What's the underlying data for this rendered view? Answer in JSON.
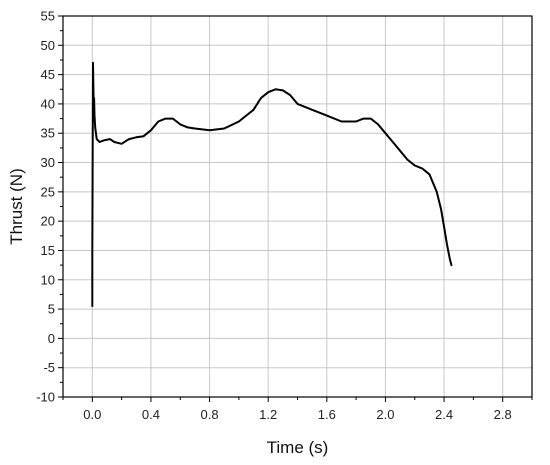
{
  "chart_data": {
    "type": "line",
    "title": "",
    "xlabel": "Time (s)",
    "ylabel": "Thrust (N)",
    "xlim": [
      -0.2,
      3.0
    ],
    "ylim": [
      -10,
      55
    ],
    "xticks": [
      0.0,
      0.4,
      0.8,
      1.2,
      1.6,
      2.0,
      2.4,
      2.8
    ],
    "xtick_labels": [
      "0.0",
      "0.4",
      "0.8",
      "1.2",
      "1.6",
      "2.0",
      "2.4",
      "2.8"
    ],
    "yticks": [
      -10,
      -5,
      0,
      5,
      10,
      15,
      20,
      25,
      30,
      35,
      40,
      45,
      50,
      55
    ],
    "ytick_labels": [
      "-10",
      "-5",
      "0",
      "5",
      "10",
      "15",
      "20",
      "25",
      "30",
      "35",
      "40",
      "45",
      "50",
      "55"
    ],
    "grid": true,
    "series": [
      {
        "name": "",
        "color": "#000000",
        "x": [
          0.0,
          0.0,
          0.005,
          0.01,
          0.012,
          0.015,
          0.02,
          0.03,
          0.05,
          0.08,
          0.12,
          0.15,
          0.2,
          0.25,
          0.3,
          0.35,
          0.4,
          0.45,
          0.5,
          0.55,
          0.6,
          0.65,
          0.7,
          0.8,
          0.9,
          1.0,
          1.05,
          1.1,
          1.15,
          1.2,
          1.25,
          1.3,
          1.35,
          1.4,
          1.5,
          1.6,
          1.7,
          1.8,
          1.85,
          1.9,
          1.95,
          2.0,
          2.05,
          2.1,
          2.15,
          2.2,
          2.25,
          2.3,
          2.35,
          2.38,
          2.4,
          2.42,
          2.44,
          2.45
        ],
        "y": [
          5.5,
          14,
          47,
          38,
          41,
          38,
          36,
          34,
          33.5,
          33.8,
          34,
          33.5,
          33.2,
          34,
          34.3,
          34.5,
          35.5,
          37,
          37.5,
          37.5,
          36.5,
          36,
          35.8,
          35.5,
          35.8,
          37,
          38,
          39,
          41,
          42,
          42.5,
          42.3,
          41.5,
          40,
          39,
          38,
          37,
          37,
          37.5,
          37.5,
          36.5,
          35,
          33.5,
          32,
          30.5,
          29.5,
          29,
          28,
          25,
          22,
          19,
          16,
          13.5,
          12.5
        ]
      }
    ]
  }
}
